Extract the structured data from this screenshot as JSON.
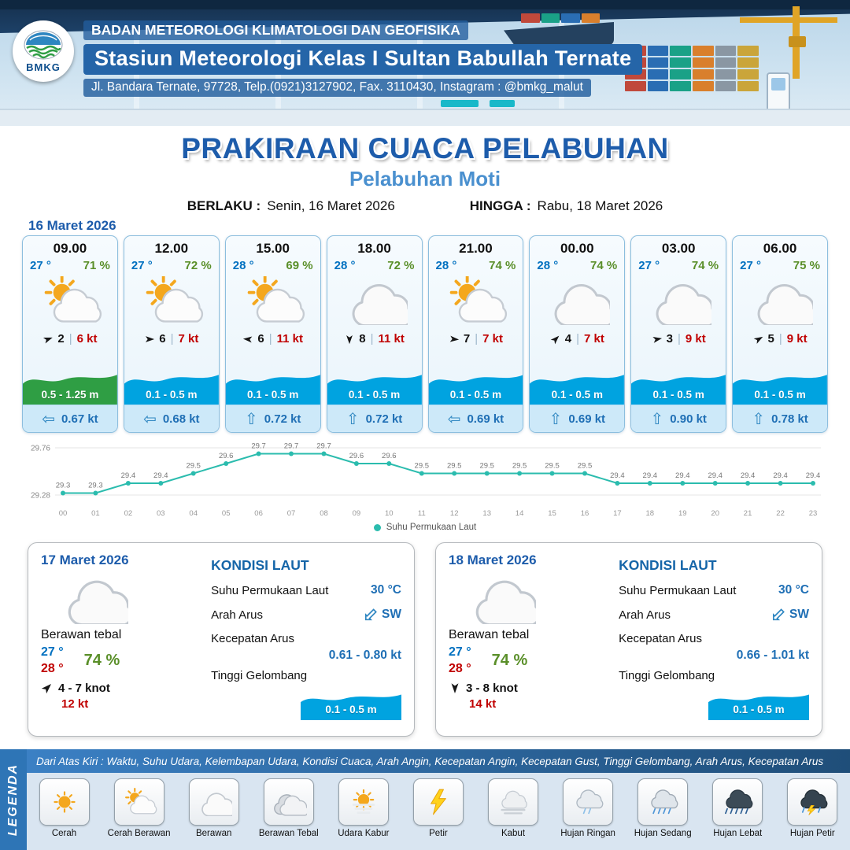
{
  "header": {
    "logo_text": "BMKG",
    "line1": "BADAN METEOROLOGI KLIMATOLOGI DAN GEOFISIKA",
    "line2": "Stasiun Meteorologi Kelas I Sultan Babullah Ternate",
    "line3": "Jl. Bandara Ternate, 97728, Telp.(0921)3127902, Fax. 3110430, Instagram : @bmkg_malut"
  },
  "title": {
    "main": "PRAKIRAAN CUACA PELABUHAN",
    "subtitle": "Pelabuhan Moti",
    "berlaku_label": "BERLAKU :",
    "berlaku_value": "Senin, 16 Maret 2026",
    "hingga_label": "HINGGA :",
    "hingga_value": "Rabu, 18 Maret 2026"
  },
  "forecast_date": "16 Maret 2026",
  "cards": [
    {
      "time": "09.00",
      "temp": "27 °",
      "humidity": "71 %",
      "icon": "sun-cloud",
      "wind_dir_deg": 70,
      "wind_speed": "2",
      "gust": "6 kt",
      "wave": "0.5 - 1.25 m",
      "wave_color": "green",
      "current_dir": "left",
      "current": "0.67 kt"
    },
    {
      "time": "12.00",
      "temp": "27 °",
      "humidity": "72 %",
      "icon": "sun-cloud",
      "wind_dir_deg": 90,
      "wind_speed": "6",
      "gust": "7 kt",
      "wave": "0.1 - 0.5 m",
      "wave_color": "blue",
      "current_dir": "left",
      "current": "0.68 kt"
    },
    {
      "time": "15.00",
      "temp": "28 °",
      "humidity": "69 %",
      "icon": "sun-cloud",
      "wind_dir_deg": 275,
      "wind_speed": "6",
      "gust": "11 kt",
      "wave": "0.1 - 0.5 m",
      "wave_color": "blue",
      "current_dir": "up",
      "current": "0.72 kt"
    },
    {
      "time": "18.00",
      "temp": "28 °",
      "humidity": "72 %",
      "icon": "cloud",
      "wind_dir_deg": 180,
      "wind_speed": "8",
      "gust": "11 kt",
      "wave": "0.1 - 0.5 m",
      "wave_color": "blue",
      "current_dir": "up",
      "current": "0.72 kt"
    },
    {
      "time": "21.00",
      "temp": "28 °",
      "humidity": "74 %",
      "icon": "sun-cloud",
      "wind_dir_deg": 95,
      "wind_speed": "7",
      "gust": "7 kt",
      "wave": "0.1 - 0.5 m",
      "wave_color": "blue",
      "current_dir": "left",
      "current": "0.69 kt"
    },
    {
      "time": "00.00",
      "temp": "28 °",
      "humidity": "74 %",
      "icon": "cloud",
      "wind_dir_deg": 45,
      "wind_speed": "4",
      "gust": "7 kt",
      "wave": "0.1 - 0.5 m",
      "wave_color": "blue",
      "current_dir": "up",
      "current": "0.69 kt"
    },
    {
      "time": "03.00",
      "temp": "27 °",
      "humidity": "74 %",
      "icon": "cloud",
      "wind_dir_deg": 80,
      "wind_speed": "3",
      "gust": "9 kt",
      "wave": "0.1 - 0.5 m",
      "wave_color": "blue",
      "current_dir": "up",
      "current": "0.90 kt"
    },
    {
      "time": "06.00",
      "temp": "27 °",
      "humidity": "75 %",
      "icon": "cloud",
      "wind_dir_deg": 60,
      "wind_speed": "5",
      "gust": "9 kt",
      "wave": "0.1 - 0.5 m",
      "wave_color": "blue",
      "current_dir": "up",
      "current": "0.78 kt"
    }
  ],
  "colors": {
    "accent_blue": "#1d5cab",
    "temp_blue": "#0070c0",
    "humidity_green": "#5a8f29",
    "gust_red": "#c00000",
    "wave_blue": "#00a3e0",
    "wave_green": "#2f9e44",
    "chart_teal": "#2bbcae"
  },
  "chart_data": {
    "type": "line",
    "title": "Suhu Permukaan Laut",
    "xlabel": "",
    "ylabel": "",
    "x": [
      "00",
      "01",
      "02",
      "03",
      "04",
      "05",
      "06",
      "07",
      "08",
      "09",
      "10",
      "11",
      "12",
      "13",
      "14",
      "15",
      "16",
      "17",
      "18",
      "19",
      "20",
      "21",
      "22",
      "23"
    ],
    "series": [
      {
        "name": "Suhu Permukaan Laut",
        "values": [
          29.3,
          29.3,
          29.4,
          29.4,
          29.5,
          29.6,
          29.7,
          29.7,
          29.7,
          29.6,
          29.6,
          29.5,
          29.5,
          29.5,
          29.5,
          29.5,
          29.5,
          29.4,
          29.4,
          29.4,
          29.4,
          29.4,
          29.4,
          29.4
        ]
      }
    ],
    "ylim": [
      29.28,
      29.76
    ],
    "grid": true,
    "legend_position": "bottom",
    "line_color": "#2bbcae"
  },
  "daily": [
    {
      "date": "17 Maret 2026",
      "icon": "cloud",
      "condition": "Berawan tebal",
      "temp_min": "27 °",
      "temp_max": "28 °",
      "humidity": "74 %",
      "wind_dir_deg": 45,
      "wind": "4 - 7 knot",
      "gust": "12 kt",
      "sea": {
        "title": "KONDISI LAUT",
        "sst_label": "Suhu Permukaan Laut",
        "sst": "30 °C",
        "arah_label": "Arah Arus",
        "arah": "SW",
        "kec_label": "Kecepatan Arus",
        "kec": "0.61 - 0.80 kt",
        "gel_label": "Tinggi Gelombang",
        "gel": "0.1 - 0.5 m"
      }
    },
    {
      "date": "18 Maret 2026",
      "icon": "cloud",
      "condition": "Berawan tebal",
      "temp_min": "27 °",
      "temp_max": "28 °",
      "humidity": "74 %",
      "wind_dir_deg": 180,
      "wind": "3 - 8 knot",
      "gust": "14 kt",
      "sea": {
        "title": "KONDISI LAUT",
        "sst_label": "Suhu Permukaan Laut",
        "sst": "30 °C",
        "arah_label": "Arah Arus",
        "arah": "SW",
        "kec_label": "Kecepatan Arus",
        "kec": "0.66 - 1.01 kt",
        "gel_label": "Tinggi Gelombang",
        "gel": "0.1 - 0.5 m"
      }
    }
  ],
  "legend": {
    "sidebar": "LEGENDA",
    "description": "Dari Atas Kiri : Waktu, Suhu Udara, Kelembapan Udara, Kondisi Cuaca, Arah Angin, Kecepatan Angin, Kecepatan Gust, Tinggi Gelombang, Arah Arus, Kecepatan Arus",
    "items": [
      {
        "label": "Cerah",
        "icon": "sun"
      },
      {
        "label": "Cerah Berawan",
        "icon": "sun-cloud"
      },
      {
        "label": "Berawan",
        "icon": "cloud"
      },
      {
        "label": "Berawan Tebal",
        "icon": "cloud-thick"
      },
      {
        "label": "Udara Kabur",
        "icon": "hazy-sun"
      },
      {
        "label": "Petir",
        "icon": "lightning"
      },
      {
        "label": "Kabut",
        "icon": "fog"
      },
      {
        "label": "Hujan Ringan",
        "icon": "rain-light"
      },
      {
        "label": "Hujan Sedang",
        "icon": "rain-moderate"
      },
      {
        "label": "Hujan Lebat",
        "icon": "rain-heavy"
      },
      {
        "label": "Hujan Petir",
        "icon": "thunderstorm"
      }
    ]
  }
}
